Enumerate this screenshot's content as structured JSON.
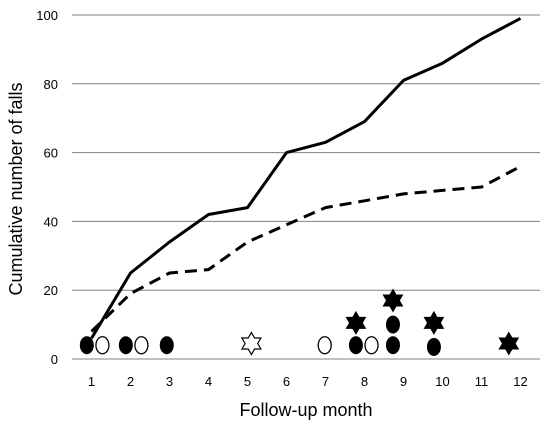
{
  "chart_data": {
    "type": "line",
    "title": "",
    "xlabel": "Follow-up month",
    "ylabel": "Cumulative number of falls",
    "xlim": [
      0.5,
      12.5
    ],
    "ylim": [
      0,
      100
    ],
    "x_ticks": [
      "1",
      "2",
      "3",
      "4",
      "5",
      "6",
      "7",
      "8",
      "9",
      "10",
      "11",
      "12"
    ],
    "y_ticks": [
      "0",
      "20",
      "40",
      "60",
      "80",
      "100"
    ],
    "grid": "horizontal",
    "legend": "none",
    "series": [
      {
        "style": "solid",
        "color": "#000000",
        "x": [
          1,
          2,
          3,
          4,
          5,
          6,
          7,
          8,
          9,
          10,
          11,
          12
        ],
        "y": [
          6,
          25,
          34,
          42,
          44,
          60,
          63,
          69,
          81,
          86,
          93,
          99
        ]
      },
      {
        "style": "dashed",
        "color": "#000000",
        "x": [
          1,
          2,
          3,
          4,
          5,
          6,
          7,
          8,
          9,
          10,
          11,
          12
        ],
        "y": [
          8,
          19,
          25,
          26,
          34,
          39,
          44,
          46,
          48,
          49,
          50,
          56
        ]
      }
    ],
    "markers": [
      {
        "shape": "filled-circle",
        "x": 0.88,
        "y": 4
      },
      {
        "shape": "open-circle",
        "x": 1.28,
        "y": 4
      },
      {
        "shape": "filled-circle",
        "x": 1.88,
        "y": 4
      },
      {
        "shape": "open-circle",
        "x": 2.28,
        "y": 4
      },
      {
        "shape": "filled-circle",
        "x": 2.93,
        "y": 4
      },
      {
        "shape": "open-star",
        "x": 5.1,
        "y": 4.5
      },
      {
        "shape": "open-circle",
        "x": 6.98,
        "y": 4
      },
      {
        "shape": "filled-circle",
        "x": 7.78,
        "y": 4
      },
      {
        "shape": "filled-star",
        "x": 7.78,
        "y": 10.5
      },
      {
        "shape": "open-circle",
        "x": 8.18,
        "y": 4
      },
      {
        "shape": "filled-circle",
        "x": 8.73,
        "y": 4
      },
      {
        "shape": "filled-circle",
        "x": 8.73,
        "y": 10
      },
      {
        "shape": "filled-star",
        "x": 8.73,
        "y": 17
      },
      {
        "shape": "filled-circle",
        "x": 9.78,
        "y": 3.5
      },
      {
        "shape": "filled-star",
        "x": 9.78,
        "y": 10.5
      },
      {
        "shape": "filled-star",
        "x": 11.7,
        "y": 4.5
      }
    ]
  }
}
